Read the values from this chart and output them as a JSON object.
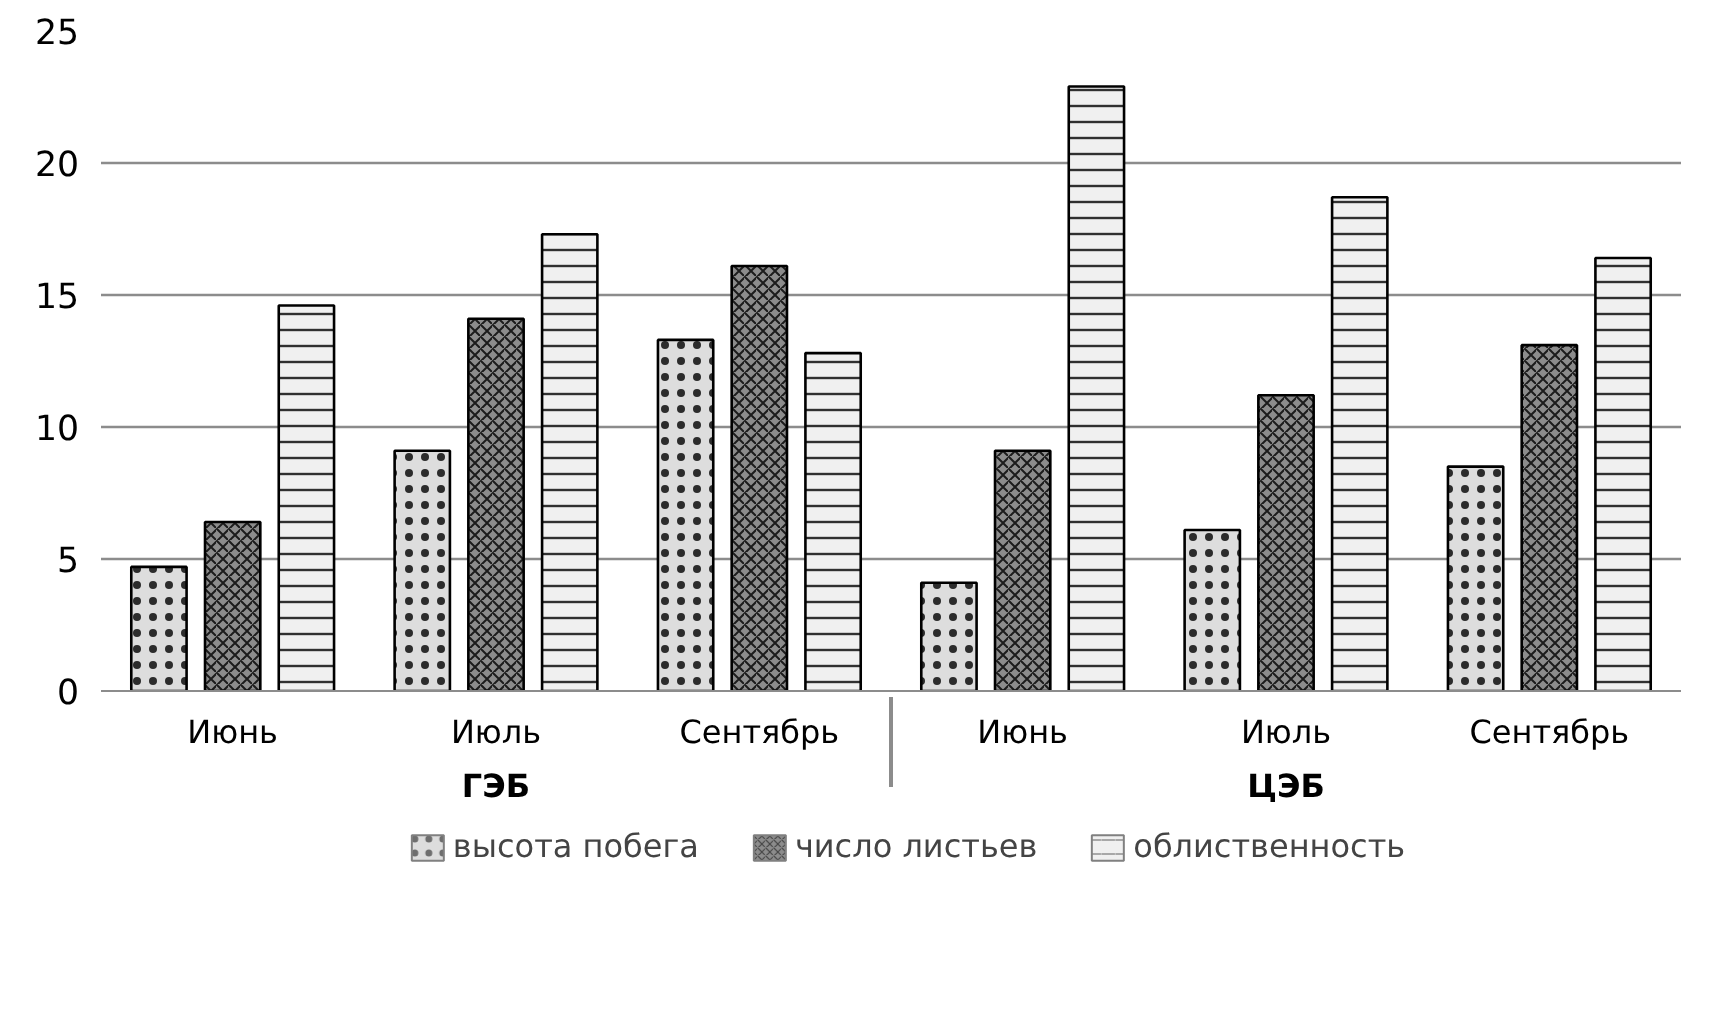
{
  "chart_data": {
    "type": "bar",
    "categories": [
      "Июнь",
      "Июль",
      "Сентябрь",
      "Июнь",
      "Июль",
      "Сентябрь"
    ],
    "annotations": [
      "ГЭБ",
      "ЦЭБ"
    ],
    "series": [
      {
        "name": "высота побега",
        "color": "#dddddd",
        "values": [
          4.7,
          9.1,
          13.3,
          4.1,
          6.1,
          8.5
        ]
      },
      {
        "name": "число листьев",
        "color": "#8c8c8c",
        "values": [
          6.4,
          14.1,
          16.1,
          9.1,
          11.2,
          13.1
        ]
      },
      {
        "name": "облиственность",
        "color": "#f0f0f0",
        "values": [
          14.6,
          17.3,
          12.8,
          22.9,
          18.7,
          16.4
        ]
      }
    ],
    "ylim": [
      0,
      25
    ],
    "yticks": [
      0,
      5,
      10,
      15,
      20,
      25
    ],
    "grid": "y",
    "legend": "bottom"
  }
}
